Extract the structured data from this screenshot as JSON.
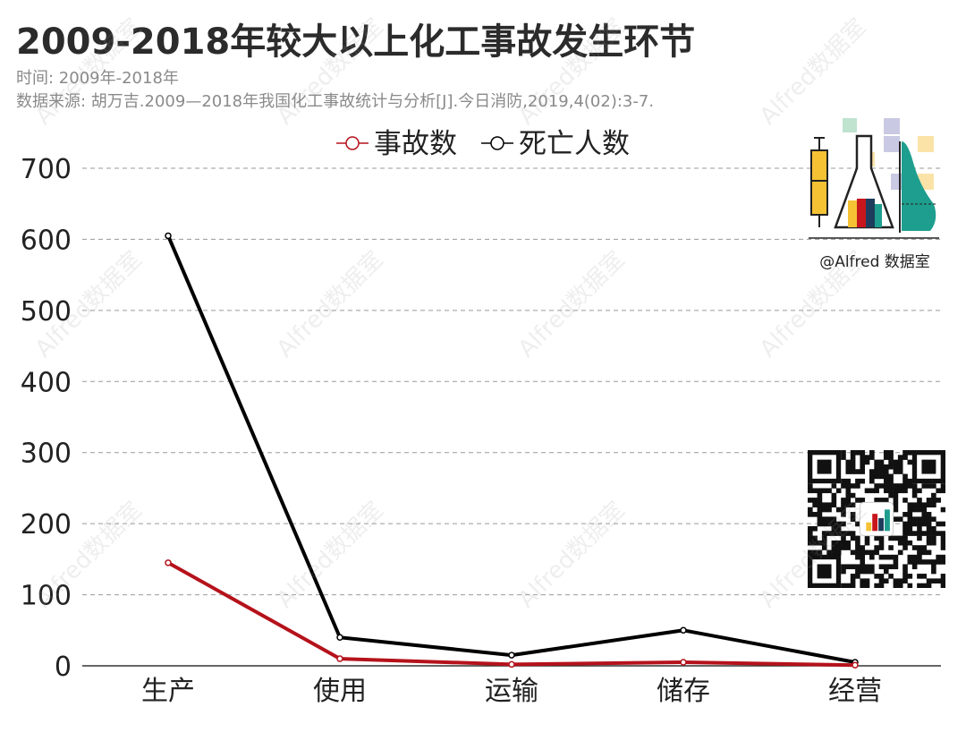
{
  "title": "2009-2018年较大以上化工事故发生环节",
  "meta": {
    "time": "时间: 2009年-2018年",
    "source": "数据来源: 胡万吉.2009—2018年我国化工事故统计与分析[J].今日消防,2019,4(02):3-7."
  },
  "watermark": "Alfred数据室",
  "logo": {
    "caption": "@Alfred 数据室"
  },
  "colors": {
    "accident": "#b5121b",
    "death": "#000000",
    "grid": "#999999",
    "axis": "#333333"
  },
  "chart_data": {
    "type": "line",
    "categories": [
      "生产",
      "使用",
      "运输",
      "储存",
      "经营"
    ],
    "series": [
      {
        "name": "事故数",
        "values": [
          145,
          10,
          2,
          5,
          1
        ],
        "color": "#b5121b"
      },
      {
        "name": "死亡人数",
        "values": [
          605,
          40,
          15,
          50,
          5
        ],
        "color": "#000000"
      }
    ],
    "ylim": [
      0,
      700
    ],
    "yticks": [
      0,
      100,
      200,
      300,
      400,
      500,
      600,
      700
    ],
    "xlabel": "",
    "ylabel": "",
    "grid": true,
    "legend_position": "top-center"
  }
}
